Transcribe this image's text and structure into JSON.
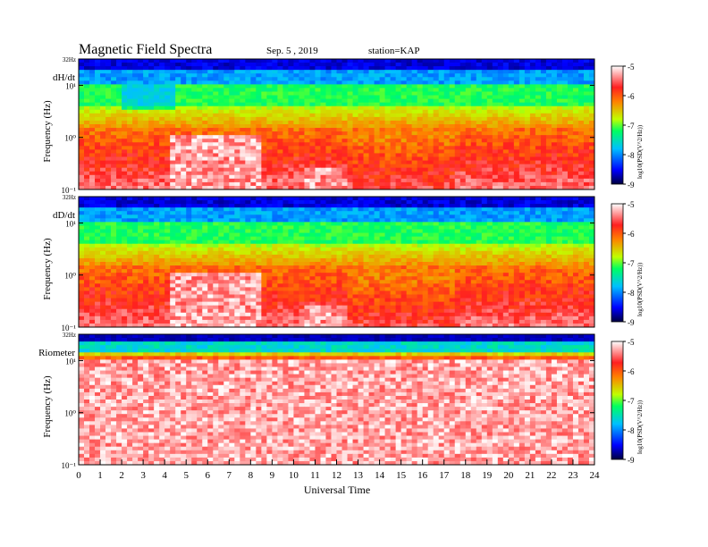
{
  "header": {
    "title": "Magnetic  Field  Spectra",
    "date": "Sep. 5  , 2019",
    "station": "station=KAP"
  },
  "colorbar": {
    "label": "log10(PSD(V^2/Hz))",
    "ticks": [
      "-5",
      "-6",
      "-7",
      "-8",
      "-9"
    ]
  },
  "chart_data": [
    {
      "type": "heatmap",
      "panel": "dH/dt",
      "ylabel": "Frequency (Hz)",
      "ytop_label": "32Hz",
      "yticks": [
        "10¹",
        "10⁰",
        "10⁻¹"
      ],
      "xlim": [
        0,
        24
      ],
      "ylim_hz": [
        0.1,
        32
      ],
      "clim": [
        -9,
        -5
      ],
      "features": {
        "quiet_band_hz": [
          5,
          10
        ],
        "low_noise_hours": [
          4.2,
          8.5
        ],
        "secondary_quiet_hours": [
          10.5,
          12.5
        ]
      }
    },
    {
      "type": "heatmap",
      "panel": "dD/dt",
      "ylabel": "Frequency (Hz)",
      "ytop_label": "32Hz",
      "yticks": [
        "10¹",
        "10⁰",
        "10⁻¹"
      ],
      "xlim": [
        0,
        24
      ],
      "ylim_hz": [
        0.1,
        32
      ],
      "clim": [
        -9,
        -5
      ],
      "features": {
        "low_noise_hours": [
          4.2,
          8.5
        ],
        "secondary_quiet_hours": [
          10.5,
          12.5
        ]
      }
    },
    {
      "type": "heatmap",
      "panel": "Riometer",
      "ylabel": "Frequency (Hz)",
      "ytop_label": "32Hz",
      "yticks": [
        "10¹",
        "10⁰",
        "10⁻¹"
      ],
      "xlim": [
        0,
        24
      ],
      "ylim_hz": [
        0.1,
        32
      ],
      "clim": [
        -9,
        -5
      ]
    }
  ],
  "xaxis": {
    "label": "Universal Time",
    "ticks": [
      "0",
      "1",
      "2",
      "3",
      "4",
      "5",
      "6",
      "7",
      "8",
      "9",
      "10",
      "11",
      "12",
      "13",
      "14",
      "15",
      "16",
      "17",
      "18",
      "19",
      "20",
      "21",
      "22",
      "23",
      "24"
    ]
  },
  "colors": {
    "scale": [
      "#000040",
      "#0000ff",
      "#00c0ff",
      "#00ff60",
      "#c0ff00",
      "#ff8000",
      "#ff2020",
      "#ffffff"
    ]
  }
}
